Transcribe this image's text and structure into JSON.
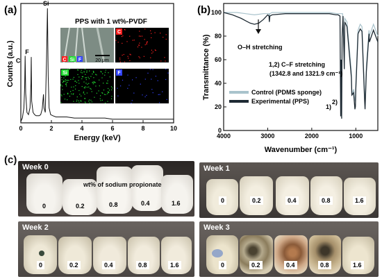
{
  "panel_a": {
    "label": "(a)",
    "title": "PPS with 1 wt%-PVDF",
    "scale_bar": "20 μm",
    "map_labels": [
      "C",
      "Si",
      "F"
    ],
    "map_tiles": [
      "C",
      "Si",
      "F"
    ],
    "colors": {
      "C": "#ff2020",
      "Si": "#22dd33",
      "F": "#3344ff"
    }
  },
  "panel_b": {
    "label": "(b)",
    "annotation_oh": "O–H stretching",
    "annotation_cf_line1": "1,2) C–F stretching",
    "annotation_cf_line2": "(1342.8 and 1321.9 cm⁻¹)",
    "peak_marks": [
      "1)",
      "2)"
    ],
    "legend_items": [
      {
        "name": "Control (PDMS sponge)",
        "color": "#a9c3cc"
      },
      {
        "name": "Experimental (PPS)",
        "color": "#1e2a33"
      }
    ]
  },
  "panel_c": {
    "label": "(c)",
    "overlay_label": "wt% of sodium propionate",
    "photos": [
      {
        "week": "Week 0",
        "samples": [
          "0",
          "0.2",
          "0.8",
          "0.4",
          "1.6"
        ]
      },
      {
        "week": "Week 1",
        "samples": [
          "0",
          "0.2",
          "0.4",
          "0.8",
          "1.6"
        ]
      },
      {
        "week": "Week 2",
        "samples": [
          "0",
          "0.2",
          "0.4",
          "0.8",
          "1.6"
        ]
      },
      {
        "week": "Week 3",
        "samples": [
          "0",
          "0.2",
          "0.4",
          "0.8",
          "1.6"
        ]
      }
    ]
  },
  "chart_data": [
    {
      "type": "line",
      "title": "PPS with 1 wt%-PVDF",
      "xlabel": "Energy (keV)",
      "ylabel": "Counts (a.u.)",
      "xlim": [
        0,
        10
      ],
      "xticks": [
        "0",
        "2",
        "4",
        "6",
        "8",
        "10"
      ],
      "grid": false,
      "peaks": [
        {
          "label": "C",
          "x": 0.28
        },
        {
          "label": "F",
          "x": 0.68
        },
        {
          "label": "Si",
          "x": 1.74
        }
      ],
      "series": [
        {
          "x": [
            0,
            0.1,
            0.2,
            0.25,
            0.28,
            0.32,
            0.4,
            0.5,
            0.6,
            0.66,
            0.68,
            0.71,
            0.8,
            0.9,
            1.0,
            1.1,
            1.2,
            1.3,
            1.4,
            1.48,
            1.52,
            1.6,
            1.68,
            1.74,
            1.79,
            1.85,
            1.95,
            2.1,
            2.3,
            2.6,
            3.0,
            3.5,
            4.0,
            4.5,
            5.0,
            5.5,
            6.0,
            6.5,
            7.0,
            7.5,
            8.0,
            8.5,
            9.0,
            9.5,
            10.0
          ],
          "y": [
            0,
            3,
            12,
            30,
            58,
            25,
            8,
            6,
            12,
            33,
            57,
            18,
            8,
            6,
            5,
            5,
            5,
            6,
            11,
            24,
            12,
            8,
            55,
            100,
            40,
            12,
            6,
            5,
            4,
            4,
            4,
            3,
            3,
            3,
            3,
            3,
            2,
            2,
            2,
            2,
            2,
            2,
            2,
            2,
            2
          ]
        }
      ]
    },
    {
      "type": "line",
      "xlabel": "Wavenumber (cm⁻¹)",
      "ylabel": "Transmittance (%)",
      "xlim": [
        4000,
        500
      ],
      "ylim": [
        0,
        100
      ],
      "xticks": [
        "4000",
        "3000",
        "2000",
        "1000"
      ],
      "yticks": [
        "0",
        "20",
        "40",
        "60",
        "80",
        "100"
      ],
      "legend": "center-left",
      "grid": false,
      "series": [
        {
          "name": "Control (PDMS sponge)",
          "color": "#a9c3cc",
          "x": [
            4000,
            3700,
            3500,
            3300,
            3100,
            2970,
            2962,
            2950,
            2900,
            2500,
            2200,
            2000,
            1800,
            1600,
            1420,
            1300,
            1262,
            1250,
            1200,
            1100,
            1090,
            1050,
            1020,
            1010,
            1000,
            950,
            900,
            860,
            800,
            790,
            760,
            700,
            690,
            600,
            500
          ],
          "y": [
            100,
            100,
            99,
            98,
            99,
            99,
            96,
            99,
            100,
            100,
            100,
            100,
            100,
            100,
            99,
            99,
            60,
            95,
            92,
            50,
            30,
            35,
            25,
            28,
            40,
            85,
            90,
            88,
            30,
            22,
            55,
            85,
            80,
            90,
            80
          ]
        },
        {
          "name": "Experimental (PPS)",
          "color": "#1e2a33",
          "x": [
            4000,
            3800,
            3600,
            3500,
            3400,
            3300,
            3200,
            3100,
            3000,
            2970,
            2962,
            2950,
            2900,
            2600,
            2200,
            2000,
            1800,
            1600,
            1450,
            1400,
            1360,
            1343,
            1332,
            1322,
            1310,
            1290,
            1262,
            1250,
            1200,
            1100,
            1090,
            1050,
            1020,
            1010,
            1000,
            950,
            900,
            860,
            800,
            790,
            760,
            700,
            690,
            600,
            500
          ],
          "y": [
            100,
            98,
            95,
            93,
            91,
            90,
            91,
            94,
            98,
            97,
            92,
            97,
            98,
            99,
            99,
            99,
            99,
            99,
            98,
            98,
            97,
            12,
            60,
            10,
            80,
            97,
            52,
            92,
            88,
            45,
            30,
            32,
            18,
            20,
            35,
            82,
            86,
            84,
            25,
            18,
            50,
            82,
            75,
            85,
            75
          ]
        }
      ]
    }
  ]
}
